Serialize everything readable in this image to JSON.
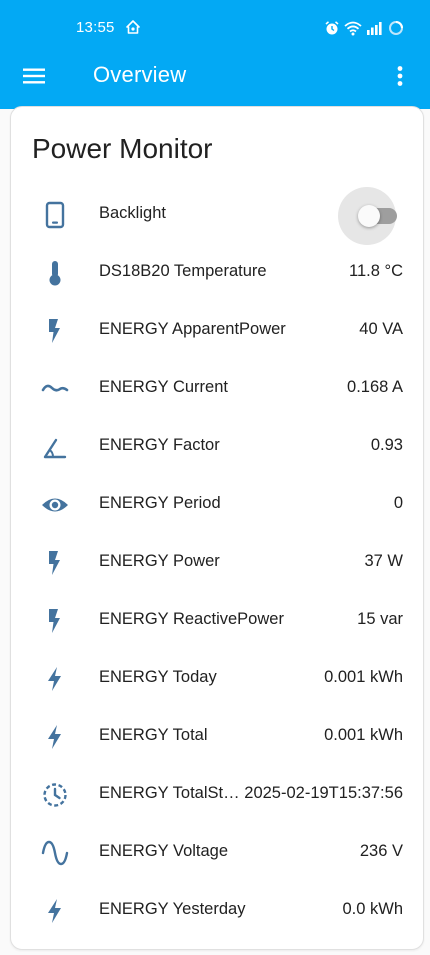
{
  "status_bar": {
    "time": "13:55"
  },
  "header": {
    "title": "Overview",
    "menu_icon": "menu-icon",
    "overflow_icon": "more-vert-icon"
  },
  "colors": {
    "header_bg": "#03a9f4",
    "icon_blue": "#44739e"
  },
  "card": {
    "title": "Power Monitor",
    "rows": [
      {
        "icon": "tablet-icon",
        "label": "Backlight",
        "toggle_state": "off"
      },
      {
        "icon": "thermometer-icon",
        "label": "DS18B20 Temperature",
        "value": "11.8 °C"
      },
      {
        "icon": "flash-icon",
        "label": "ENERGY ApparentPower",
        "value": "40 VA"
      },
      {
        "icon": "current-ac-icon",
        "label": "ENERGY Current",
        "value": "0.168 A"
      },
      {
        "icon": "angle-acute-icon",
        "label": "ENERGY Factor",
        "value": "0.93"
      },
      {
        "icon": "eye-icon",
        "label": "ENERGY Period",
        "value": "0"
      },
      {
        "icon": "flash-icon",
        "label": "ENERGY Power",
        "value": "37 W"
      },
      {
        "icon": "flash-icon",
        "label": "ENERGY ReactivePower",
        "value": "15 var"
      },
      {
        "icon": "lightning-bolt-icon",
        "label": "ENERGY Today",
        "value": "0.001 kWh"
      },
      {
        "icon": "lightning-bolt-icon",
        "label": "ENERGY Total",
        "value": "0.001 kWh"
      },
      {
        "icon": "clock-outline-icon",
        "label": "ENERGY TotalSt…",
        "value": "2025-02-19T15:37:56"
      },
      {
        "icon": "sine-wave-icon",
        "label": "ENERGY Voltage",
        "value": "236 V"
      },
      {
        "icon": "lightning-bolt-icon",
        "label": "ENERGY Yesterday",
        "value": "0.0 kWh"
      }
    ]
  }
}
